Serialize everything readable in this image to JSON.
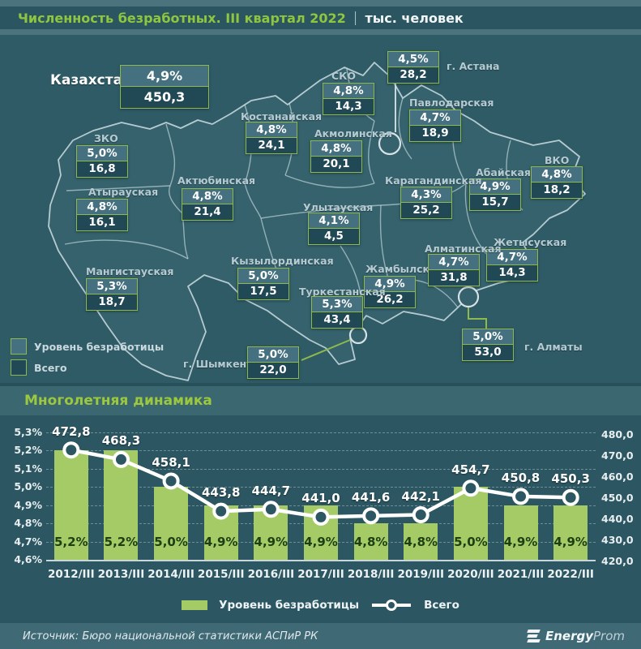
{
  "header": {
    "title": "Численность безработных. III квартал 2022",
    "separator": "|",
    "unit": "тыс. человек"
  },
  "map": {
    "country": {
      "id": "kazakhstan",
      "name": "Казахстан",
      "rate": "4,9%",
      "total": "450,3"
    },
    "regions": [
      {
        "id": "astana",
        "name": "г. Астана",
        "rate": "4,5%",
        "total": "28,2"
      },
      {
        "id": "sko",
        "name": "СКО",
        "rate": "4,8%",
        "total": "14,3"
      },
      {
        "id": "pavlodar",
        "name": "Павлодарская",
        "rate": "4,7%",
        "total": "18,9"
      },
      {
        "id": "kostanay",
        "name": "Костанайская",
        "rate": "4,8%",
        "total": "24,1"
      },
      {
        "id": "akmola",
        "name": "Акмолинская",
        "rate": "4,8%",
        "total": "20,1"
      },
      {
        "id": "vko",
        "name": "ВКО",
        "rate": "4,8%",
        "total": "18,2"
      },
      {
        "id": "abay",
        "name": "Абайская",
        "rate": "4,9%",
        "total": "15,7"
      },
      {
        "id": "karaganda",
        "name": "Карагандинская",
        "rate": "4,3%",
        "total": "25,2"
      },
      {
        "id": "zko",
        "name": "ЗКО",
        "rate": "5,0%",
        "total": "16,8"
      },
      {
        "id": "aktobe",
        "name": "Актюбинская",
        "rate": "4,8%",
        "total": "21,4"
      },
      {
        "id": "atyrau",
        "name": "Атырауская",
        "rate": "4,8%",
        "total": "16,1"
      },
      {
        "id": "ulytau",
        "name": "Улытауская",
        "rate": "4,1%",
        "total": "4,5"
      },
      {
        "id": "kyzylorda",
        "name": "Кызылординская",
        "rate": "5,0%",
        "total": "17,5"
      },
      {
        "id": "zhambyl",
        "name": "Жамбылская",
        "rate": "4,9%",
        "total": "26,2"
      },
      {
        "id": "zhetysu",
        "name": "Жетысуская",
        "rate": "4,7%",
        "total": "14,3"
      },
      {
        "id": "almaty-obl",
        "name": "Алматинская",
        "rate": "4,7%",
        "total": "31,8"
      },
      {
        "id": "mangystau",
        "name": "Мангистауская",
        "rate": "5,3%",
        "total": "18,7"
      },
      {
        "id": "turkestan",
        "name": "Туркестанская",
        "rate": "5,3%",
        "total": "43,4"
      },
      {
        "id": "almaty-city",
        "name": "г. Алматы",
        "rate": "5,0%",
        "total": "53,0"
      },
      {
        "id": "shymkent",
        "name": "г. Шымкент",
        "rate": "5,0%",
        "total": "22,0"
      }
    ],
    "legend": [
      "Уровень безработицы",
      "Всего"
    ]
  },
  "section": {
    "title": "Многолетняя динамика"
  },
  "chart_data": {
    "type": "bar+line",
    "categories": [
      "2012/III",
      "2013/III",
      "2014/III",
      "2015/III",
      "2016/III",
      "2017/III",
      "2018/III",
      "2019/III",
      "2020/III",
      "2021/III",
      "2022/III"
    ],
    "series": [
      {
        "name": "Уровень безработицы",
        "type": "bar",
        "axis": "left",
        "values": [
          5.2,
          5.2,
          5.0,
          4.9,
          4.9,
          4.9,
          4.8,
          4.8,
          5.0,
          4.9,
          4.9
        ],
        "labels": [
          "5,2%",
          "5,2%",
          "5,0%",
          "4,9%",
          "4,9%",
          "4,9%",
          "4,8%",
          "4,8%",
          "5,0%",
          "4,9%",
          "4,9%"
        ]
      },
      {
        "name": "Всего",
        "type": "line",
        "axis": "right",
        "values": [
          472.8,
          468.3,
          458.1,
          443.8,
          444.7,
          441.0,
          441.6,
          442.1,
          454.7,
          450.8,
          450.3
        ],
        "labels": [
          "472,8",
          "468,3",
          "458,1",
          "443,8",
          "444,7",
          "441,0",
          "441,6",
          "442,1",
          "454,7",
          "450,8",
          "450,3"
        ]
      }
    ],
    "left_axis": {
      "min": 4.6,
      "max": 5.3,
      "ticks": [
        "5,3%",
        "5,2%",
        "5,1%",
        "5,0%",
        "4,9%",
        "4,8%",
        "4,7%",
        "4,6%"
      ]
    },
    "right_axis": {
      "min": 420,
      "max": 480,
      "ticks": [
        "480,0",
        "470,0",
        "460,0",
        "450,0",
        "440,0",
        "430,0",
        "420,0"
      ]
    },
    "legend": [
      "Уровень безработицы",
      "Всего"
    ],
    "legend_position": "bottom",
    "grid": "horizontal-dashed"
  },
  "footer": {
    "source": "Источник: Бюро национальной статистики АСПиР РК",
    "brand": {
      "bold": "Energy",
      "light": "Prom"
    }
  },
  "colors": {
    "background": "#2f5b66",
    "band": "#3b6771",
    "accent_green": "#8db94d",
    "title_green": "#8fc63f",
    "bar_green": "#a5cb66",
    "box_rate": "#44707f",
    "box_total": "#204855",
    "line": "#ffffff"
  }
}
